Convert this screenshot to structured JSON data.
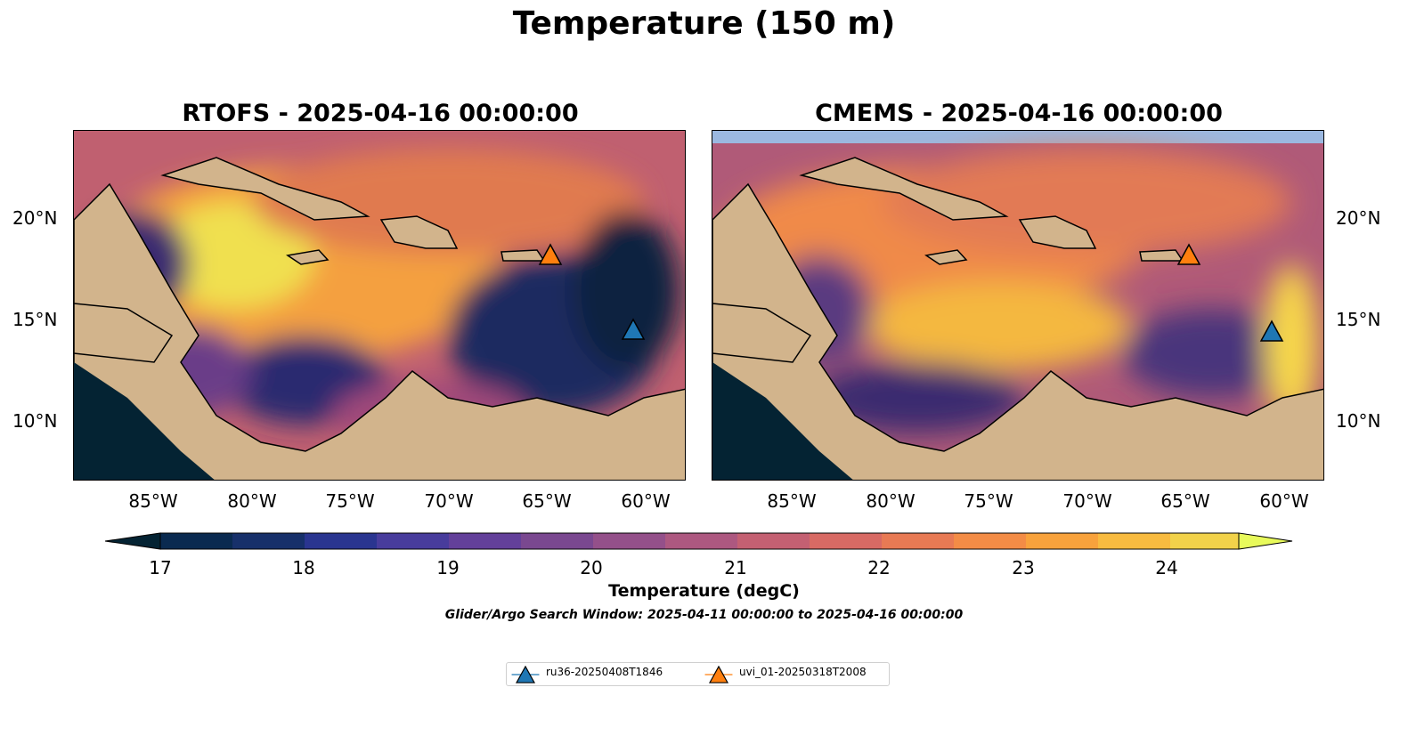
{
  "title": "Temperature (150 m)",
  "panels": [
    {
      "title": "RTOFS - 2025-04-16 00:00:00"
    },
    {
      "title": "CMEMS - 2025-04-16 00:00:00"
    }
  ],
  "latitude_ticks": [
    "20°N",
    "15°N",
    "10°N"
  ],
  "longitude_ticks": [
    "85°W",
    "80°W",
    "75°W",
    "70°W",
    "65°W",
    "60°W"
  ],
  "colorbar": {
    "label": "Temperature (degC)",
    "ticks": [
      "17",
      "18",
      "19",
      "20",
      "21",
      "22",
      "23",
      "24"
    ],
    "colormap": "thermal",
    "extend": "both"
  },
  "search_window": "Glider/Argo Search Window: 2025-04-11 00:00:00 to 2025-04-16 00:00:00",
  "legend": [
    {
      "label": "ru36-20250408T1846",
      "color": "#1f77b4",
      "marker": "triangle-icon"
    },
    {
      "label": "uvi_01-20250318T2008",
      "color": "#ff7f0e",
      "marker": "triangle-icon"
    }
  ],
  "map_colors": {
    "land": "#d2b48c",
    "shallow_water": "#9bb8e0",
    "deep": "#042333"
  }
}
